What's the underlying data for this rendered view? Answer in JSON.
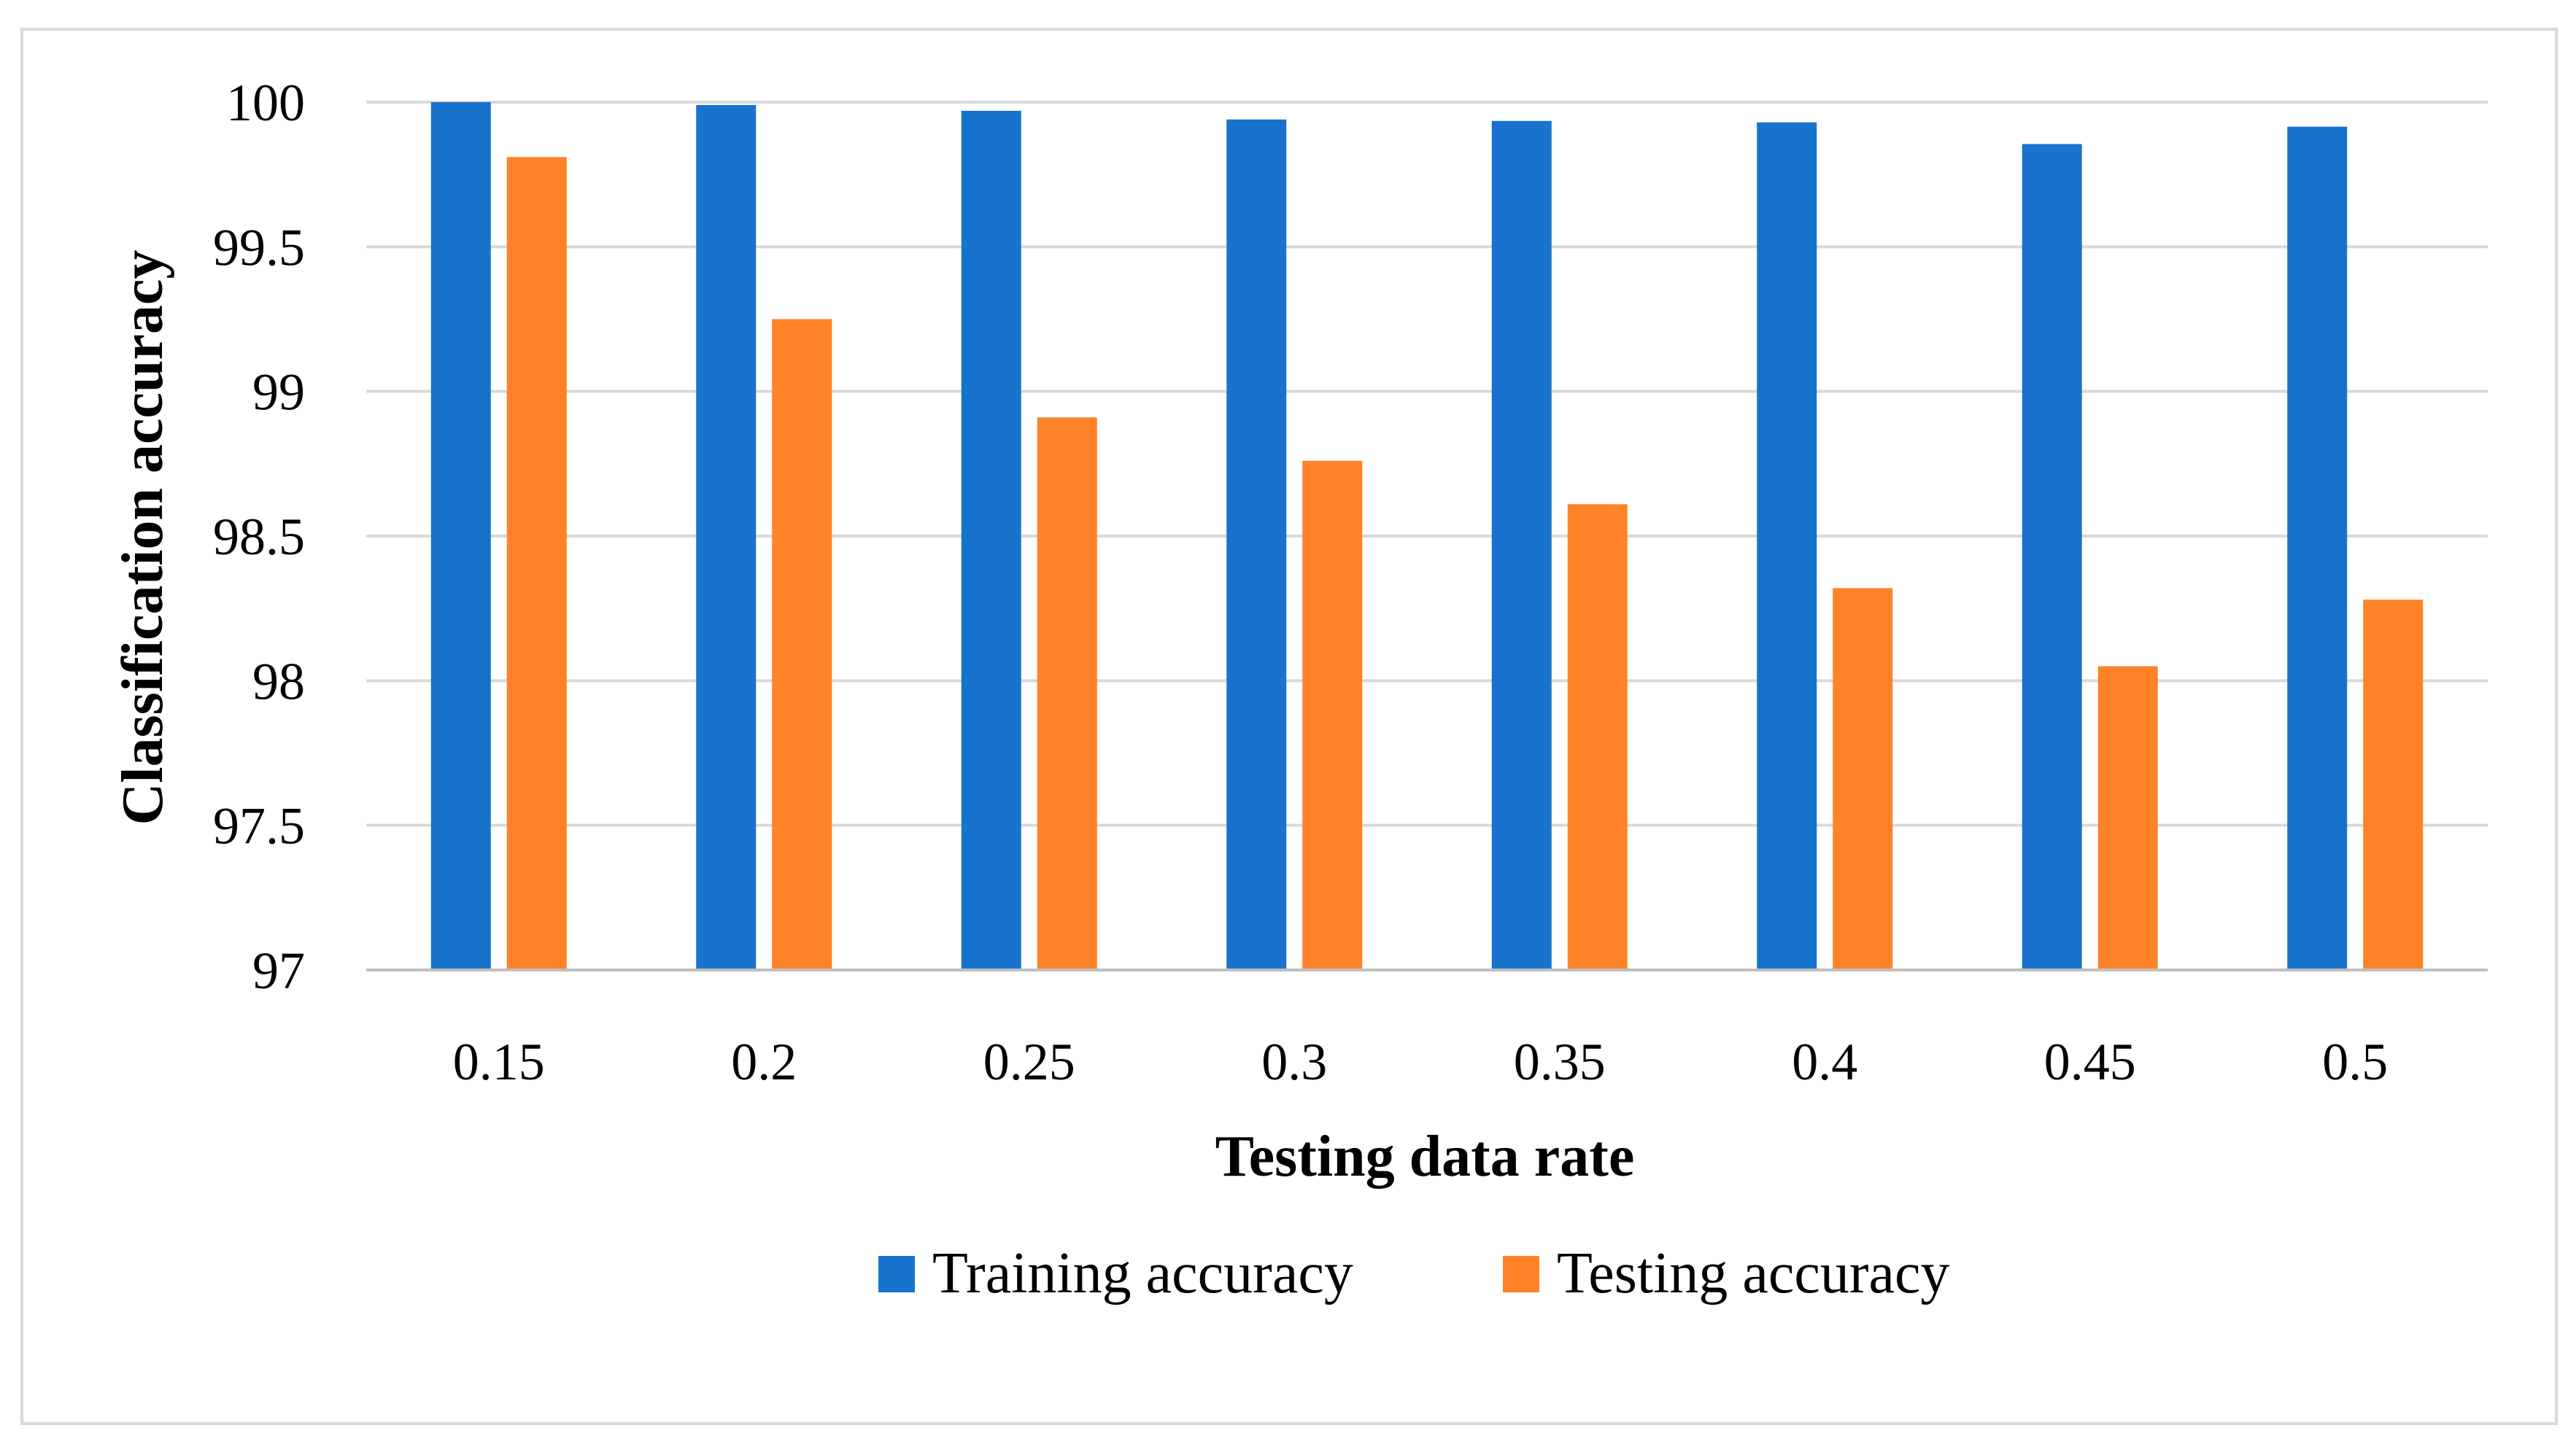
{
  "chart_data": {
    "type": "bar",
    "title": "",
    "xlabel": "Testing data rate",
    "ylabel": "Classification accuracy",
    "ylim": [
      97,
      100
    ],
    "yticks": [
      97,
      97.5,
      98,
      98.5,
      99,
      99.5,
      100
    ],
    "ytick_labels": [
      "97",
      "97.5",
      "98",
      "98.5",
      "99",
      "99.5",
      "100"
    ],
    "grid": true,
    "legend_position": "bottom",
    "categories": [
      "0.15",
      "0.2",
      "0.25",
      "0.3",
      "0.35",
      "0.4",
      "0.45",
      "0.5"
    ],
    "series": [
      {
        "name": "Training accuracy",
        "color": "#1873CC",
        "values": [
          100.0,
          99.99,
          99.97,
          99.94,
          99.935,
          99.93,
          99.855,
          99.915
        ]
      },
      {
        "name": "Testing accuracy",
        "color": "#FF8228",
        "values": [
          99.81,
          99.25,
          98.91,
          98.76,
          98.61,
          98.32,
          98.05,
          98.28
        ]
      }
    ]
  }
}
